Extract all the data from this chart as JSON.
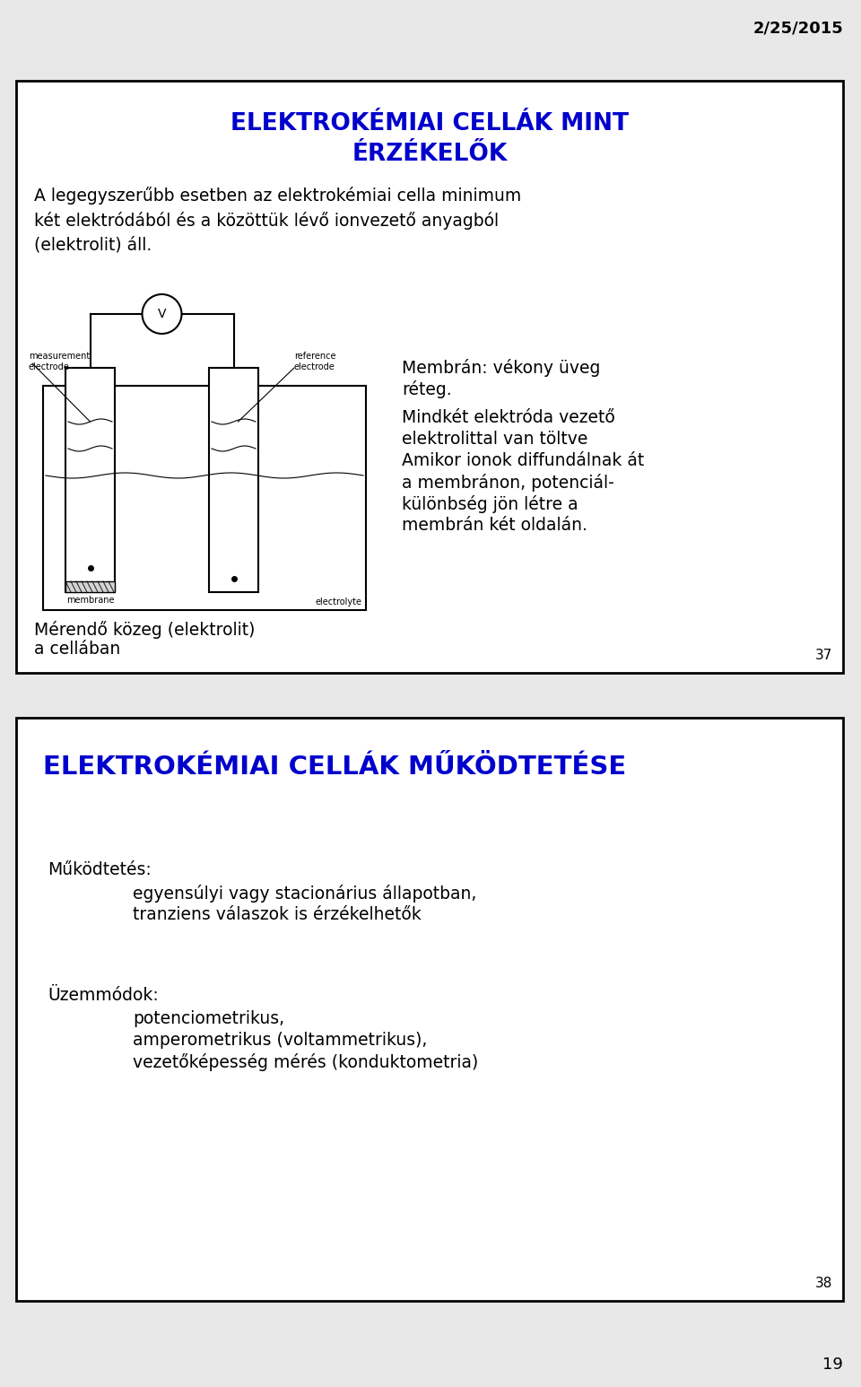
{
  "bg_color": "#e8e8e8",
  "date_text": "2/25/2015",
  "slide1": {
    "title_line1": "ELEKTROKÉMIAI CELLÁK MINT",
    "title_line2": "ÉRZÉKELŐK",
    "title_color": "#0000cc",
    "body_text": "A legegyszerűbb esetben az elektrokémiai cella minimum\nkét elektródából és a közöttük lévő ionvezető anyagból\n(elektrolit) áll.",
    "right_text_line1": "Membrán: vékony üveg",
    "right_text_line2": "réteg.",
    "right_text_line3": "Mindkét elektróda vezető",
    "right_text_line4": "elektrolittal van töltve",
    "right_text_line5": "Amikor ionok diffundálnak át",
    "right_text_line6": "a membránon, potenciál-",
    "right_text_line7": "különbség jön létre a",
    "right_text_line8": "membrán két oldalán.",
    "caption_line1": "Mérendő közeg (elektrolit)",
    "caption_line2": "a cellában",
    "slide_number": "37"
  },
  "slide2": {
    "title": "ELEKTROKÉMIAI CELLÁK MŰKÖDTETÉSE",
    "title_color": "#0000cc",
    "mukodtetes_label": "Működtetés:",
    "mukodtetes_line1": "egyensúlyi vagy stacionárius állapotban,",
    "mukodtetes_line2": "tranziens válaszok is érzékelhetők",
    "uzemmodik_label": "Üzemmódok:",
    "uzemmodik_line1": "potenciometrikus,",
    "uzemmodik_line2": "amperometrikus (voltammetrikus),",
    "uzemmodik_line3": "vezetőképesség mérés (konduktometria)",
    "slide_number": "38"
  },
  "page_number": "19",
  "text_color": "#000000"
}
